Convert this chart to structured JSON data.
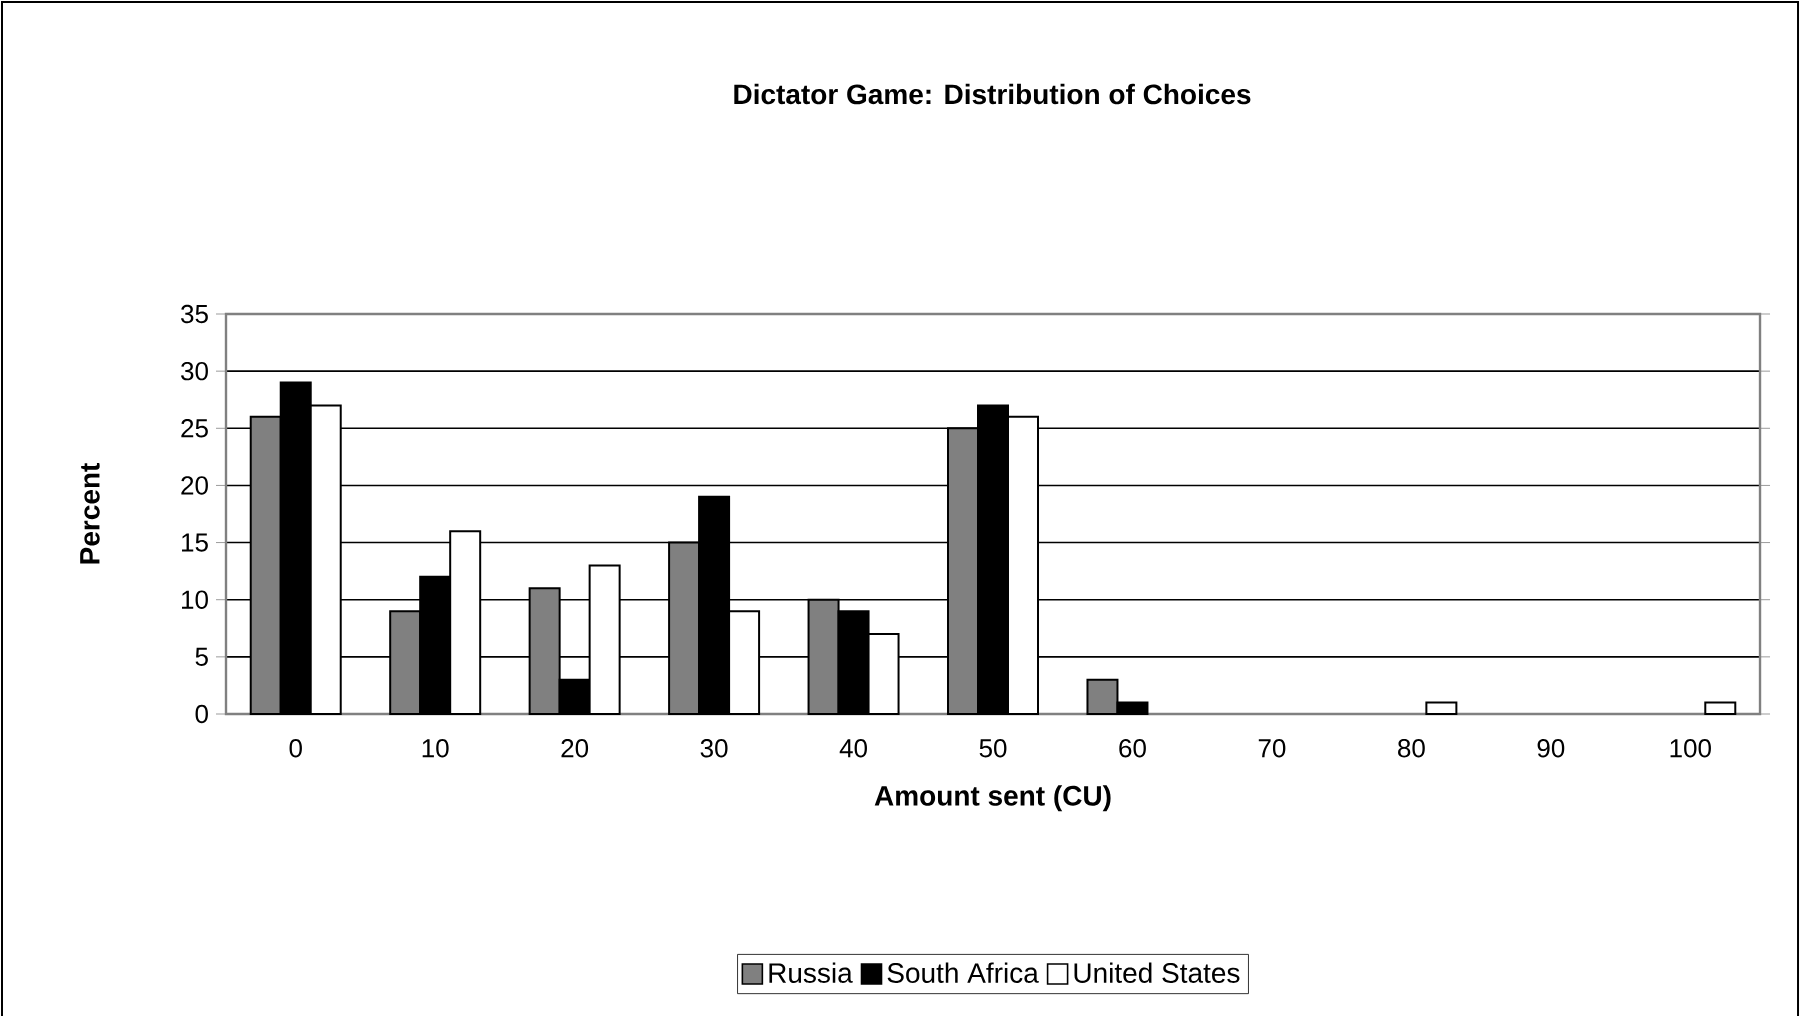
{
  "chart_data": {
    "type": "bar",
    "title": "Dictator Game: Distribution of Choices",
    "xlabel": "Amount sent (CU)",
    "ylabel": "Percent",
    "categories": [
      "0",
      "10",
      "20",
      "30",
      "40",
      "50",
      "60",
      "70",
      "80",
      "90",
      "100"
    ],
    "series": [
      {
        "name": "Russia",
        "color": "#808080",
        "values": [
          26,
          9,
          11,
          15,
          10,
          25,
          3,
          0,
          0,
          0,
          0
        ]
      },
      {
        "name": "South Africa",
        "color": "#000000",
        "values": [
          29,
          12,
          3,
          19,
          9,
          27,
          1,
          0,
          0,
          0,
          0
        ]
      },
      {
        "name": "United States",
        "color": "#ffffff",
        "values": [
          27,
          16,
          13,
          9,
          7,
          26,
          0,
          0,
          1,
          0,
          1
        ]
      }
    ],
    "ylim": [
      0,
      35
    ],
    "yticks": [
      0,
      5,
      10,
      15,
      20,
      25,
      30,
      35
    ],
    "grid": "y",
    "legend": "bottom"
  }
}
